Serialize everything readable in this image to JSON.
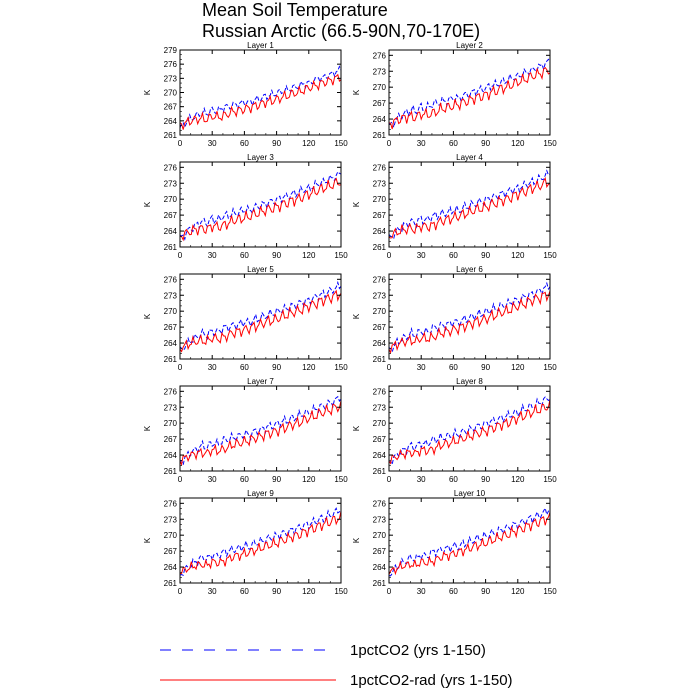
{
  "title": {
    "line1": "Mean Soil Temperature",
    "line2": "Russian Arctic (66.5-90N,70-170E)"
  },
  "legend": {
    "entries": [
      {
        "label": "1pctCO2 (yrs 1-150)",
        "color": "#0000ff",
        "style": "dashed"
      },
      {
        "label": "1pctCO2-rad (yrs 1-150)",
        "color": "#ff0000",
        "style": "solid"
      }
    ]
  },
  "chart_data": {
    "type": "line",
    "layout": "5 rows x 2 columns of panels",
    "series_names": [
      "1pctCO2 (yrs 1-150)",
      "1pctCO2-rad (yrs 1-150)"
    ],
    "xlim": [
      0,
      150
    ],
    "xticks": [
      0,
      30,
      60,
      90,
      120,
      150
    ],
    "ylabel": "K",
    "grid": false,
    "legend_position": "bottom",
    "panels": [
      {
        "name": "Layer 1",
        "ylim": [
          261,
          279
        ],
        "yticks": [
          261,
          264,
          267,
          270,
          273,
          276,
          279
        ]
      },
      {
        "name": "Layer 2",
        "ylim": [
          261,
          277
        ],
        "yticks": [
          261,
          264,
          267,
          270,
          273,
          276
        ]
      },
      {
        "name": "Layer 3",
        "ylim": [
          261,
          277
        ],
        "yticks": [
          261,
          264,
          267,
          270,
          273,
          276
        ]
      },
      {
        "name": "Layer 4",
        "ylim": [
          261,
          277
        ],
        "yticks": [
          261,
          264,
          267,
          270,
          273,
          276
        ]
      },
      {
        "name": "Layer 5",
        "ylim": [
          261,
          277
        ],
        "yticks": [
          261,
          264,
          267,
          270,
          273,
          276
        ]
      },
      {
        "name": "Layer 6",
        "ylim": [
          261,
          277
        ],
        "yticks": [
          261,
          264,
          267,
          270,
          273,
          276
        ]
      },
      {
        "name": "Layer 7",
        "ylim": [
          261,
          277
        ],
        "yticks": [
          261,
          264,
          267,
          270,
          273,
          276
        ]
      },
      {
        "name": "Layer 8",
        "ylim": [
          261,
          277
        ],
        "yticks": [
          261,
          264,
          267,
          270,
          273,
          276
        ]
      },
      {
        "name": "Layer 9",
        "ylim": [
          261,
          277
        ],
        "yticks": [
          261,
          264,
          267,
          270,
          273,
          276
        ]
      },
      {
        "name": "Layer 10",
        "ylim": [
          261,
          277
        ],
        "yticks": [
          261,
          264,
          267,
          270,
          273,
          276
        ]
      }
    ],
    "x": [
      0,
      5,
      10,
      15,
      20,
      25,
      30,
      35,
      40,
      45,
      50,
      55,
      60,
      65,
      70,
      75,
      80,
      85,
      90,
      95,
      100,
      105,
      110,
      115,
      120,
      125,
      130,
      135,
      140,
      145,
      150
    ],
    "series": [
      {
        "name": "1pctCO2 (yrs 1-150)",
        "color": "#0000ff",
        "values": [
          262.5,
          263.5,
          264.5,
          265.0,
          265.8,
          265.5,
          266.3,
          266.0,
          266.8,
          267.0,
          267.3,
          267.5,
          268.0,
          267.8,
          268.5,
          268.7,
          269.2,
          269.5,
          269.8,
          270.3,
          270.5,
          271.0,
          271.3,
          271.8,
          272.0,
          272.5,
          273.0,
          273.3,
          273.8,
          274.3,
          275.0
        ]
      },
      {
        "name": "1pctCO2-rad (yrs 1-150)",
        "color": "#ff0000",
        "values": [
          263.0,
          263.5,
          264.0,
          264.3,
          264.5,
          264.3,
          265.0,
          264.8,
          265.0,
          265.5,
          266.0,
          266.2,
          266.5,
          266.8,
          267.2,
          267.5,
          268.0,
          268.2,
          268.5,
          269.0,
          269.3,
          269.8,
          270.0,
          270.5,
          271.0,
          271.3,
          271.8,
          272.2,
          272.5,
          273.0,
          273.3
        ]
      }
    ]
  }
}
